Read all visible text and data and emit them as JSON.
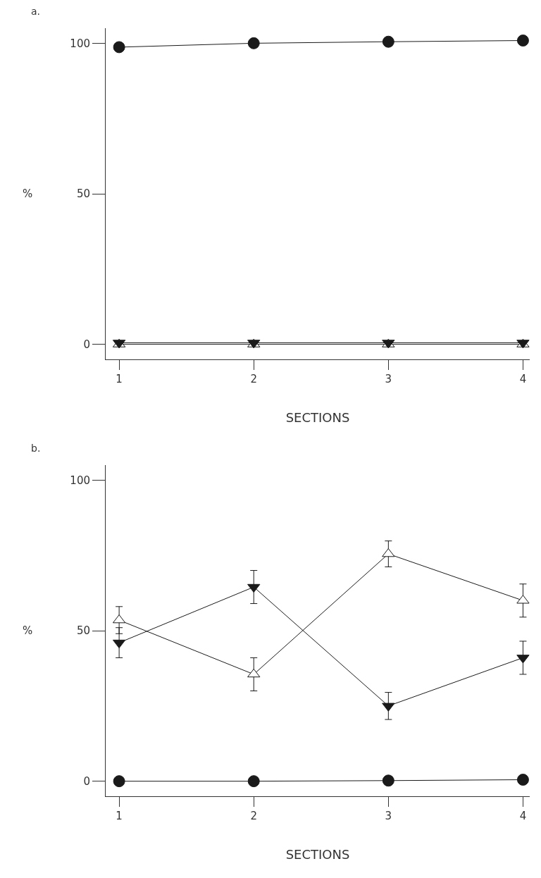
{
  "chart_data": [
    {
      "type": "line",
      "title": "a.",
      "xlabel": "SECTIONS",
      "ylabel": "%",
      "x": [
        1,
        2,
        3,
        4
      ],
      "xlim": [
        0.9,
        4.05
      ],
      "xticks": [
        1,
        2,
        3,
        4
      ],
      "ylim": [
        -5,
        105
      ],
      "yticks": [
        0,
        50,
        100
      ],
      "grid": false,
      "line_style": "solid",
      "series": [
        {
          "color": "#1a1a1a",
          "marker": "circle",
          "values": [
            98.7,
            100,
            100.5,
            100.9
          ]
        },
        {
          "color": "#1a1a1a",
          "marker": "triangle-down",
          "values": [
            0.5,
            0.5,
            0.5,
            0.5
          ]
        },
        {
          "color": "#1a1a1a",
          "marker": "triangle-up-open",
          "values": [
            0,
            0,
            0,
            0
          ]
        }
      ]
    },
    {
      "type": "line",
      "title": "b.",
      "xlabel": "SECTIONS",
      "ylabel": "%",
      "x": [
        1,
        2,
        3,
        4
      ],
      "xlim": [
        0.9,
        4.05
      ],
      "xticks": [
        1,
        2,
        3,
        4
      ],
      "ylim": [
        -5,
        105
      ],
      "yticks": [
        0,
        50,
        100
      ],
      "grid": false,
      "line_style": "solid",
      "series": [
        {
          "color": "#1a1a1a",
          "marker": "circle",
          "values": [
            0,
            0,
            0.2,
            0.5
          ]
        },
        {
          "color": "#1a1a1a",
          "marker": "triangle-down",
          "values": [
            46,
            64.5,
            25,
            41
          ],
          "errors": [
            5,
            5.5,
            4.5,
            5.5
          ]
        },
        {
          "color": "#1a1a1a",
          "marker": "triangle-up-open",
          "values": [
            53.5,
            35.5,
            75.5,
            60
          ],
          "errors": [
            4.5,
            5.5,
            4.3,
            5.5
          ]
        }
      ]
    }
  ]
}
